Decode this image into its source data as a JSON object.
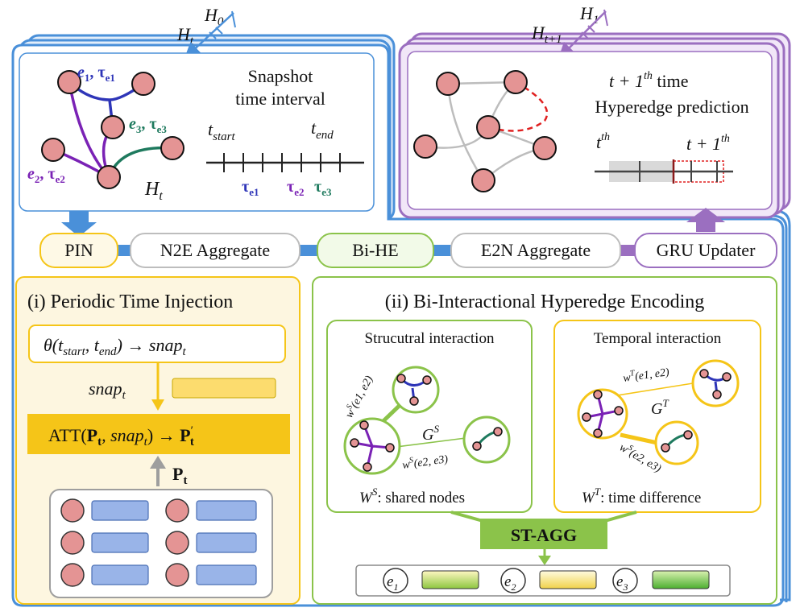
{
  "top": {
    "h0": "H",
    "h0_sub": "0",
    "ht": "H",
    "ht_sub": "t",
    "h1": "H",
    "h1_sub": "1",
    "htp1": "H",
    "htp1_sub": "t+1"
  },
  "left_panel": {
    "e1": "e",
    "e1_sub": "1",
    "tau1_sub": "e1",
    "e2": "e",
    "e2_sub": "2",
    "tau2_sub": "e2",
    "e3": "e",
    "e3_sub": "3",
    "tau3_sub": "e3",
    "tau": "τ",
    "ht": "H",
    "ht_sub": "t",
    "title_line1": "Snapshot",
    "title_line2": "time interval",
    "t_start": "t",
    "t_start_sub": "start",
    "t_end": "t",
    "t_end_sub": "end"
  },
  "right_panel": {
    "title_line1_a": "t + 1",
    "title_line1_sup": "th",
    "title_line1_b": " time",
    "title_line2": "Hyperedge prediction",
    "t_th": "t",
    "t_th_sup": "th",
    "t1_th": "t + 1",
    "t1_th_sup": "th"
  },
  "pipeline": {
    "pin": "PIN",
    "n2e": "N2E Aggregate",
    "bihe": "Bi-HE",
    "e2n": "E2N Aggregate",
    "gru": "GRU Updater"
  },
  "pti": {
    "title": "(i) Periodic Time Injection",
    "theta_a": "θ(t",
    "theta_start": "start",
    "theta_mid": ", t",
    "theta_end": "end",
    "theta_b": ") → snap",
    "theta_sub": "t",
    "snap": "snap",
    "snap_sub": "t",
    "att_a": "ATT(",
    "att_P": "P",
    "att_Psub": "t",
    "att_mid": ", snap",
    "att_midsub": "t",
    "att_b": ") → ",
    "att_P2": "P",
    "att_P2sup": "′",
    "att_P2sub": "t",
    "pt": "P",
    "pt_sub": "t"
  },
  "bihe_panel": {
    "title": "(ii) Bi-Interactional Hyperedge Encoding",
    "structural_title": "Strucutral interaction",
    "temporal_title": "Temporal interaction",
    "ws_e1e2": "w",
    "ws_sup": "S",
    "ws_e1e2_args": "(e1, e2)",
    "ws_e2e3_args": "(e2, e3)",
    "gs": "G",
    "gs_sup": "S",
    "gt": "G",
    "gt_sup": "T",
    "wt_e1e2_args": "(e1, e2)",
    "wt_sup": "T",
    "ws_caption_a": "W",
    "ws_caption_sup": "S",
    "ws_caption_b": ": shared nodes",
    "wt_caption_a": "W",
    "wt_caption_sup": "T",
    "wt_caption_b": ": time difference",
    "stagg": "ST-AGG",
    "e1": "e",
    "e1_sub": "1",
    "e2": "e",
    "e2_sub": "2",
    "e3": "e",
    "e3_sub": "3"
  },
  "colors": {
    "blue_frame": "#4a90d9",
    "purple_frame": "#9b6fc0",
    "node_fill": "#e49494",
    "e1_color": "#2e35b8",
    "e2_color": "#7a22b5",
    "e3_color": "#1e7a5e",
    "yellow": "#f5c518",
    "green": "#8bc34a",
    "red_dash": "#e02020"
  }
}
